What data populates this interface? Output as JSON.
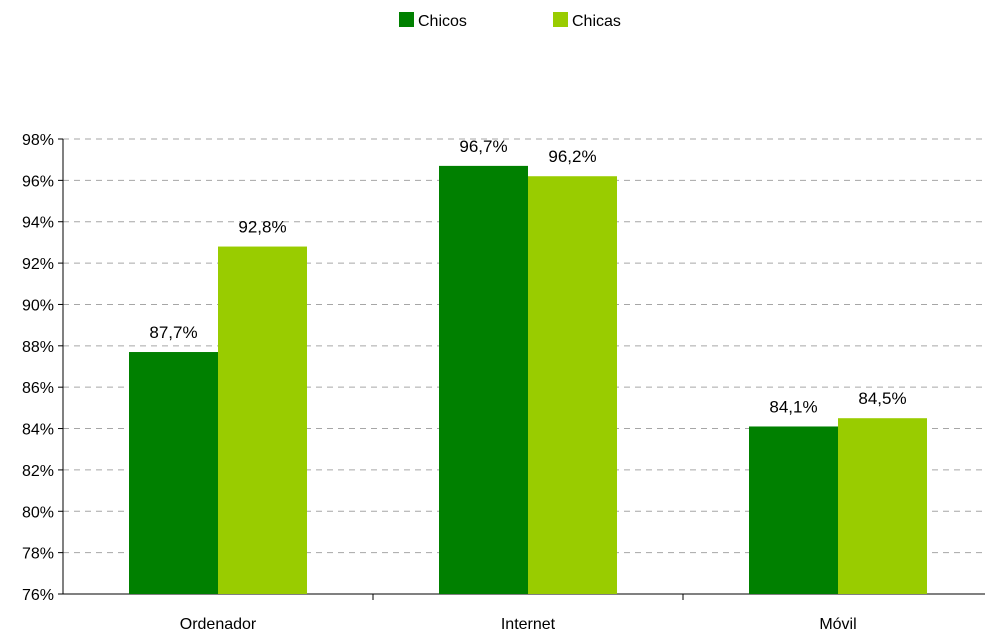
{
  "chart_data": {
    "type": "bar",
    "categories": [
      "Ordenador",
      "Internet",
      "Móvil"
    ],
    "series": [
      {
        "name": "Chicos",
        "values": [
          87.7,
          96.7,
          84.1
        ],
        "color": "#008000"
      },
      {
        "name": "Chicas",
        "values": [
          92.8,
          96.2,
          84.5
        ],
        "color": "#99cc00"
      }
    ],
    "value_labels": [
      [
        "87,7%",
        "96,7%",
        "84,1%"
      ],
      [
        "92,8%",
        "96,2%",
        "84,5%"
      ]
    ],
    "ylim": [
      76,
      98
    ],
    "y_ticks": [
      76,
      78,
      80,
      82,
      84,
      86,
      88,
      90,
      92,
      94,
      96,
      98
    ],
    "y_tick_labels": [
      "76%",
      "78%",
      "80%",
      "82%",
      "84%",
      "86%",
      "88%",
      "90%",
      "92%",
      "94%",
      "96%",
      "98%"
    ],
    "grid": true,
    "legend_position": "top-center",
    "xlabel": "",
    "ylabel": ""
  }
}
